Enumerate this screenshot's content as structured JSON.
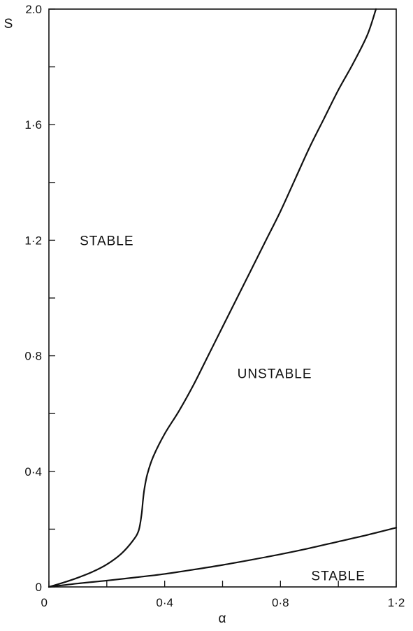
{
  "chart_data": {
    "type": "line",
    "title": "",
    "xlabel": "α",
    "ylabel": "S",
    "xlim": [
      0,
      1.2
    ],
    "ylim": [
      0,
      2.0
    ],
    "grid": false,
    "x_ticks": [
      0,
      0.2,
      0.4,
      0.6,
      0.8,
      1.0,
      1.2
    ],
    "x_tick_labels": [
      "0",
      "",
      "0·4",
      "",
      "0·8",
      "",
      "1·2"
    ],
    "y_ticks": [
      0,
      0.2,
      0.4,
      0.6,
      0.8,
      1.0,
      1.2,
      1.4,
      1.6,
      1.8,
      2.0
    ],
    "y_tick_labels": [
      "0",
      "",
      "0·4",
      "",
      "0·8",
      "",
      "1·2",
      "",
      "1·6",
      "",
      "2.0"
    ],
    "series": [
      {
        "x": [
          0,
          0.05,
          0.1,
          0.15,
          0.2,
          0.25,
          0.29,
          0.31,
          0.32,
          0.325,
          0.33,
          0.34,
          0.36,
          0.4,
          0.45,
          0.5,
          0.55,
          0.6,
          0.65,
          0.7,
          0.75,
          0.8,
          0.85,
          0.9,
          0.95,
          1.0,
          1.05,
          1.1,
          1.13
        ],
        "y": [
          0,
          0.015,
          0.032,
          0.052,
          0.078,
          0.115,
          0.16,
          0.195,
          0.25,
          0.3,
          0.34,
          0.39,
          0.45,
          0.53,
          0.61,
          0.7,
          0.8,
          0.9,
          1.0,
          1.1,
          1.2,
          1.3,
          1.41,
          1.52,
          1.62,
          1.72,
          1.81,
          1.91,
          2.0
        ]
      },
      {
        "x": [
          0,
          0.1,
          0.2,
          0.3,
          0.4,
          0.5,
          0.6,
          0.7,
          0.8,
          0.9,
          1.0,
          1.1,
          1.2
        ],
        "y": [
          0,
          0.012,
          0.022,
          0.033,
          0.045,
          0.06,
          0.076,
          0.094,
          0.113,
          0.134,
          0.157,
          0.18,
          0.205
        ]
      }
    ],
    "annotations": [
      {
        "text": "STABLE",
        "x": 0.2,
        "y": 1.2
      },
      {
        "text": "UNSTABLE",
        "x": 0.78,
        "y": 0.74
      },
      {
        "text": "STABLE",
        "x": 1.0,
        "y": 0.04
      }
    ]
  }
}
